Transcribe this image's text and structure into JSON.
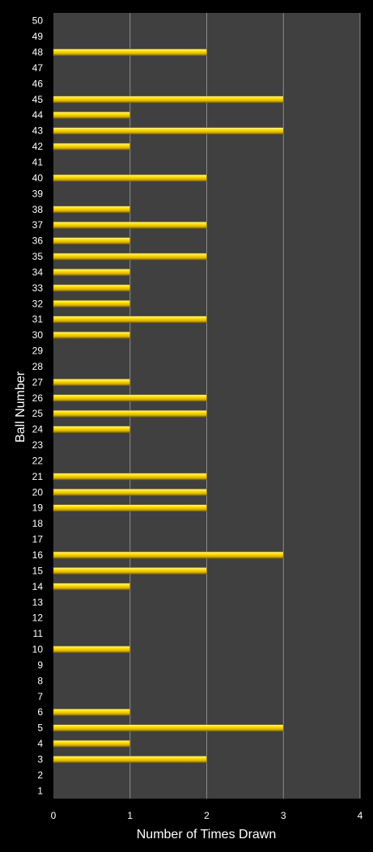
{
  "chart_data": {
    "type": "bar",
    "orientation": "horizontal",
    "title": "",
    "xlabel": "Number of Times Drawn",
    "ylabel": "Ball Number",
    "xlim": [
      0,
      4
    ],
    "x_ticks": [
      "0",
      "1",
      "2",
      "3",
      "4"
    ],
    "grid": true,
    "legend": "none",
    "categories": [
      "1",
      "2",
      "3",
      "4",
      "5",
      "6",
      "7",
      "8",
      "9",
      "10",
      "11",
      "12",
      "13",
      "14",
      "15",
      "16",
      "17",
      "18",
      "19",
      "20",
      "21",
      "22",
      "23",
      "24",
      "25",
      "26",
      "27",
      "28",
      "29",
      "30",
      "31",
      "32",
      "33",
      "34",
      "35",
      "36",
      "37",
      "38",
      "39",
      "40",
      "41",
      "42",
      "43",
      "44",
      "45",
      "46",
      "47",
      "48",
      "49",
      "50"
    ],
    "values": [
      0,
      0,
      2,
      1,
      3,
      1,
      0,
      0,
      0,
      1,
      0,
      0,
      0,
      1,
      2,
      3,
      0,
      0,
      2,
      2,
      2,
      0,
      0,
      1,
      2,
      2,
      1,
      0,
      0,
      1,
      2,
      1,
      1,
      1,
      2,
      1,
      2,
      1,
      0,
      2,
      0,
      1,
      3,
      1,
      3,
      0,
      0,
      2,
      0,
      0
    ],
    "colors": {
      "background": "#000000",
      "plot_area": "#404040",
      "gridline": "#8a8a8a",
      "bar": "#ffd700",
      "bar_highlight": "#fff59a",
      "bar_shadow": "#8a6d00",
      "text": "#ffffff"
    }
  }
}
